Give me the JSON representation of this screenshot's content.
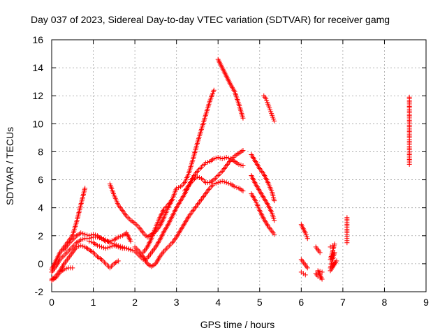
{
  "chart_data": {
    "type": "scatter",
    "title": "Day 037 of 2023, Sidereal Day-to-day VTEC variation (SDTVAR) for receiver gamg",
    "xlabel": "GPS time / hours",
    "ylabel": "SDTVAR / TECUs",
    "xlim": [
      0,
      9
    ],
    "ylim": [
      -2,
      16
    ],
    "xticks": [
      "0",
      "1",
      "2",
      "3",
      "4",
      "5",
      "6",
      "7",
      "8",
      "9"
    ],
    "yticks": [
      "-2",
      "0",
      "2",
      "4",
      "6",
      "8",
      "10",
      "12",
      "14",
      "16"
    ],
    "grid": true,
    "marker": "plus",
    "color": "#ff0000",
    "series": [
      {
        "points": [
          [
            0.0,
            -1.2
          ],
          [
            0.1,
            -1.0
          ],
          [
            0.2,
            -0.6
          ],
          [
            0.3,
            -0.4
          ],
          [
            0.4,
            -0.3
          ],
          [
            0.5,
            -0.3
          ]
        ]
      },
      {
        "points": [
          [
            0.0,
            -0.6
          ],
          [
            0.1,
            -0.2
          ],
          [
            0.2,
            0.3
          ],
          [
            0.3,
            0.6
          ],
          [
            0.4,
            0.9
          ],
          [
            0.5,
            1.2
          ],
          [
            0.6,
            1.5
          ],
          [
            0.7,
            1.7
          ],
          [
            0.8,
            1.8
          ],
          [
            0.9,
            1.8
          ],
          [
            1.0,
            1.9
          ],
          [
            1.1,
            1.9
          ],
          [
            1.2,
            1.8
          ],
          [
            1.3,
            1.7
          ],
          [
            1.4,
            1.5
          ],
          [
            1.5,
            1.4
          ],
          [
            1.6,
            1.3
          ],
          [
            1.7,
            1.2
          ],
          [
            1.8,
            1.1
          ],
          [
            1.9,
            1.0
          ],
          [
            2.0,
            0.9
          ],
          [
            2.1,
            0.6
          ],
          [
            2.2,
            0.3
          ],
          [
            2.3,
            0.4
          ],
          [
            2.4,
            0.8
          ],
          [
            2.5,
            1.2
          ],
          [
            2.6,
            1.7
          ],
          [
            2.7,
            2.3
          ],
          [
            2.8,
            2.8
          ],
          [
            2.9,
            3.4
          ],
          [
            3.0,
            4.0
          ],
          [
            3.1,
            4.5
          ],
          [
            3.2,
            5.0
          ],
          [
            3.3,
            5.6
          ],
          [
            3.4,
            6.2
          ],
          [
            3.5,
            6.6
          ],
          [
            3.6,
            6.9
          ],
          [
            3.7,
            7.2
          ],
          [
            3.8,
            7.3
          ],
          [
            3.9,
            7.5
          ],
          [
            4.0,
            7.6
          ],
          [
            4.1,
            7.5
          ],
          [
            4.2,
            7.6
          ],
          [
            4.3,
            7.5
          ],
          [
            4.4,
            7.3
          ],
          [
            4.5,
            7.1
          ],
          [
            4.6,
            7.0
          ]
        ]
      },
      {
        "points": [
          [
            0.0,
            -0.4
          ],
          [
            0.1,
            0.2
          ],
          [
            0.2,
            0.8
          ],
          [
            0.3,
            1.2
          ],
          [
            0.4,
            1.6
          ],
          [
            0.5,
            2.0
          ],
          [
            0.6,
            3.0
          ],
          [
            0.7,
            4.2
          ],
          [
            0.8,
            5.4
          ]
        ]
      },
      {
        "points": [
          [
            0.0,
            -1.1
          ],
          [
            0.1,
            -0.9
          ],
          [
            0.2,
            -0.5
          ],
          [
            0.3,
            0.0
          ],
          [
            0.4,
            0.4
          ],
          [
            0.5,
            0.8
          ],
          [
            0.6,
            1.2
          ],
          [
            0.7,
            1.3
          ],
          [
            0.8,
            1.2
          ],
          [
            0.9,
            1.0
          ],
          [
            1.0,
            0.8
          ],
          [
            1.1,
            0.5
          ],
          [
            1.2,
            0.3
          ],
          [
            1.3,
            0.0
          ],
          [
            1.4,
            -0.3
          ],
          [
            1.5,
            0.0
          ],
          [
            1.6,
            0.2
          ]
        ]
      },
      {
        "points": [
          [
            0.3,
            1.0
          ],
          [
            0.4,
            1.4
          ],
          [
            0.5,
            1.7
          ],
          [
            0.6,
            2.0
          ],
          [
            0.7,
            2.2
          ],
          [
            0.8,
            2.1
          ],
          [
            0.9,
            2.0
          ],
          [
            1.0,
            2.1
          ],
          [
            1.1,
            2.0
          ],
          [
            1.2,
            1.8
          ],
          [
            1.3,
            1.6
          ],
          [
            1.4,
            1.6
          ],
          [
            1.5,
            1.7
          ],
          [
            1.6,
            1.9
          ],
          [
            1.7,
            2.0
          ],
          [
            1.8,
            2.2
          ],
          [
            1.9,
            1.6
          ]
        ]
      },
      {
        "points": [
          [
            0.9,
            1.6
          ],
          [
            1.0,
            1.5
          ],
          [
            1.1,
            1.3
          ],
          [
            1.2,
            1.2
          ],
          [
            1.3,
            1.1
          ],
          [
            1.4,
            1.2
          ],
          [
            1.5,
            1.3
          ],
          [
            1.6,
            1.2
          ],
          [
            1.7,
            1.1
          ],
          [
            1.8,
            1.1
          ],
          [
            1.9,
            1.0
          ]
        ]
      },
      {
        "points": [
          [
            1.4,
            5.7
          ],
          [
            1.5,
            4.9
          ],
          [
            1.6,
            4.2
          ],
          [
            1.7,
            3.8
          ],
          [
            1.8,
            3.4
          ],
          [
            1.9,
            3.1
          ],
          [
            2.0,
            2.9
          ],
          [
            2.1,
            2.6
          ],
          [
            2.2,
            2.2
          ],
          [
            2.3,
            1.9
          ],
          [
            2.4,
            2.1
          ],
          [
            2.5,
            2.3
          ],
          [
            2.6,
            2.7
          ],
          [
            2.7,
            3.3
          ],
          [
            2.8,
            4.0
          ],
          [
            2.9,
            4.6
          ]
        ]
      },
      {
        "points": [
          [
            2.0,
            1.2
          ],
          [
            2.1,
            0.9
          ],
          [
            2.2,
            0.5
          ],
          [
            2.3,
            0.0
          ],
          [
            2.4,
            -0.2
          ],
          [
            2.5,
            0.0
          ],
          [
            2.6,
            0.5
          ],
          [
            2.7,
            0.9
          ],
          [
            2.8,
            1.2
          ],
          [
            2.9,
            1.5
          ],
          [
            3.0,
            1.9
          ],
          [
            3.1,
            2.4
          ],
          [
            3.2,
            2.9
          ],
          [
            3.3,
            3.4
          ],
          [
            3.4,
            3.8
          ],
          [
            3.5,
            4.2
          ],
          [
            3.6,
            4.6
          ],
          [
            3.7,
            5.0
          ],
          [
            3.8,
            5.4
          ],
          [
            3.9,
            5.7
          ],
          [
            4.0,
            5.8
          ],
          [
            4.1,
            5.9
          ],
          [
            4.2,
            5.8
          ],
          [
            4.3,
            5.7
          ],
          [
            4.4,
            5.5
          ],
          [
            4.5,
            5.4
          ],
          [
            4.6,
            5.2
          ]
        ]
      },
      {
        "points": [
          [
            2.2,
            0.8
          ],
          [
            2.3,
            1.2
          ],
          [
            2.4,
            1.8
          ],
          [
            2.5,
            2.6
          ],
          [
            2.6,
            3.3
          ],
          [
            2.7,
            3.9
          ],
          [
            2.8,
            4.2
          ],
          [
            2.9,
            4.6
          ],
          [
            3.0,
            5.4
          ],
          [
            3.1,
            5.5
          ],
          [
            3.2,
            5.8
          ],
          [
            3.3,
            6.5
          ],
          [
            3.4,
            7.5
          ],
          [
            3.5,
            8.6
          ],
          [
            3.6,
            9.6
          ],
          [
            3.7,
            10.6
          ],
          [
            3.8,
            11.6
          ],
          [
            3.9,
            12.4
          ]
        ]
      },
      {
        "points": [
          [
            3.2,
            5.2
          ],
          [
            3.3,
            5.6
          ],
          [
            3.4,
            6.0
          ],
          [
            3.5,
            6.2
          ],
          [
            3.6,
            6.1
          ],
          [
            3.7,
            5.8
          ],
          [
            3.8,
            5.8
          ],
          [
            3.9,
            6.0
          ],
          [
            4.0,
            6.3
          ],
          [
            4.1,
            6.6
          ],
          [
            4.2,
            7.0
          ],
          [
            4.3,
            7.4
          ],
          [
            4.4,
            7.7
          ],
          [
            4.5,
            7.9
          ],
          [
            4.6,
            8.1
          ]
        ]
      },
      {
        "points": [
          [
            4.0,
            14.6
          ],
          [
            4.1,
            14.0
          ],
          [
            4.2,
            13.4
          ],
          [
            4.3,
            12.8
          ],
          [
            4.4,
            12.3
          ],
          [
            4.5,
            11.4
          ],
          [
            4.6,
            10.4
          ]
        ]
      },
      {
        "points": [
          [
            4.8,
            7.8
          ],
          [
            4.9,
            7.3
          ],
          [
            5.0,
            6.8
          ],
          [
            5.1,
            6.4
          ],
          [
            5.2,
            5.8
          ],
          [
            5.3,
            5.1
          ],
          [
            5.35,
            4.5
          ]
        ]
      },
      {
        "points": [
          [
            4.8,
            6.3
          ],
          [
            4.9,
            5.7
          ],
          [
            5.0,
            5.2
          ],
          [
            5.1,
            4.7
          ],
          [
            5.2,
            4.2
          ],
          [
            5.3,
            3.6
          ],
          [
            5.35,
            3.1
          ]
        ]
      },
      {
        "points": [
          [
            4.8,
            5.0
          ],
          [
            4.9,
            4.5
          ],
          [
            5.0,
            3.8
          ],
          [
            5.1,
            3.2
          ],
          [
            5.2,
            2.7
          ],
          [
            5.3,
            2.3
          ],
          [
            5.35,
            2.1
          ]
        ]
      },
      {
        "points": [
          [
            5.1,
            12.0
          ],
          [
            5.15,
            11.8
          ],
          [
            5.2,
            11.4
          ],
          [
            5.25,
            11.0
          ],
          [
            5.3,
            10.6
          ],
          [
            5.35,
            10.2
          ]
        ]
      },
      {
        "points": [
          [
            6.0,
            2.8
          ],
          [
            6.05,
            2.5
          ],
          [
            6.1,
            2.2
          ],
          [
            6.15,
            1.8
          ]
        ]
      },
      {
        "points": [
          [
            6.0,
            0.3
          ],
          [
            6.05,
            0.1
          ],
          [
            6.1,
            -0.1
          ],
          [
            6.15,
            -0.3
          ]
        ]
      },
      {
        "points": [
          [
            6.0,
            -0.6
          ],
          [
            6.05,
            -0.7
          ],
          [
            6.1,
            -0.8
          ]
        ]
      },
      {
        "points": [
          [
            6.35,
            1.2
          ],
          [
            6.4,
            1.0
          ],
          [
            6.45,
            0.8
          ]
        ]
      },
      {
        "points": [
          [
            6.35,
            -0.7
          ],
          [
            6.4,
            -0.9
          ],
          [
            6.45,
            -1.0
          ],
          [
            6.5,
            -1.1
          ],
          [
            6.4,
            -0.5
          ],
          [
            6.5,
            -0.6
          ]
        ]
      },
      {
        "points": [
          [
            6.7,
            1.2
          ],
          [
            6.75,
            1.3
          ],
          [
            6.8,
            1.4
          ],
          [
            6.7,
            0.3
          ],
          [
            6.75,
            0.5
          ],
          [
            6.8,
            0.8
          ],
          [
            6.7,
            -0.3
          ],
          [
            6.75,
            -0.2
          ],
          [
            6.8,
            0.0
          ],
          [
            6.85,
            0.2
          ],
          [
            6.7,
            -0.5
          ]
        ]
      },
      {
        "points": [
          [
            7.1,
            3.3
          ],
          [
            7.1,
            2.1
          ],
          [
            7.1,
            1.8
          ],
          [
            7.1,
            1.5
          ]
        ]
      },
      {
        "points": [
          [
            8.6,
            11.9
          ],
          [
            8.6,
            10.8
          ],
          [
            8.6,
            9.0
          ],
          [
            8.6,
            8.5
          ],
          [
            8.6,
            7.1
          ]
        ]
      }
    ]
  }
}
